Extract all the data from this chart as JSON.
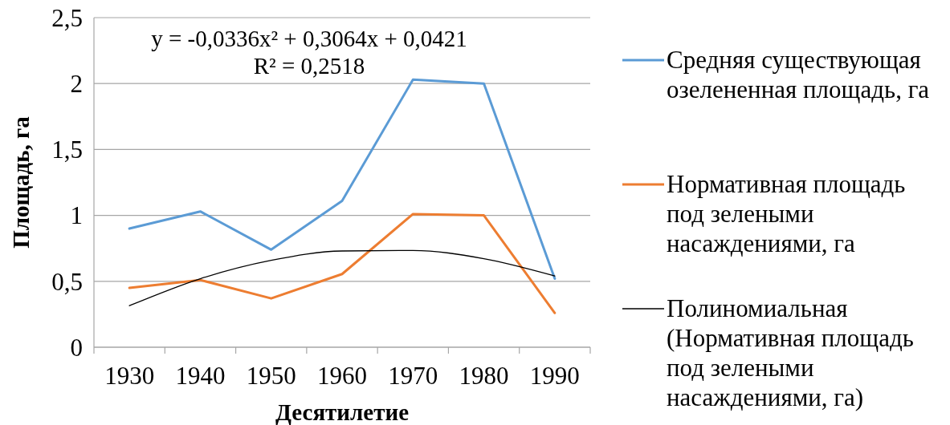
{
  "chart_data": {
    "type": "line",
    "xlabel": "Десятилетие",
    "ylabel": "Площадь, га",
    "categories": [
      "1930",
      "1940",
      "1950",
      "1960",
      "1970",
      "1980",
      "1990"
    ],
    "series": [
      {
        "name": "Средняя существующая озелененная площадь, га",
        "color": "#5b9bd5",
        "values": [
          0.9,
          1.03,
          0.74,
          1.11,
          2.03,
          2.0,
          0.52
        ]
      },
      {
        "name": "Нормативная площадь под зелеными насаждениями, га",
        "color": "#ed7d31",
        "values": [
          0.45,
          0.51,
          0.37,
          0.555,
          1.01,
          1.0,
          0.26
        ]
      },
      {
        "name": "Полиномиальная (Нормативная площадь под зелеными насаждениями, га)",
        "color": "#000000",
        "values": [
          0.315,
          0.52,
          0.659,
          0.73,
          0.734,
          0.671,
          0.54
        ]
      }
    ],
    "ylim": [
      0,
      2.5
    ],
    "yticks": [
      0,
      {
        "value": 0.5,
        "label": "0,5"
      },
      1,
      {
        "value": 1.5,
        "label": "1,5"
      },
      2,
      {
        "value": 2.5,
        "label": "2,5"
      }
    ],
    "grid": "y",
    "legend": "right",
    "marker": "none",
    "line_style": "solid",
    "annotations": [
      "y = -0,0336x² + 0,3064x + 0,0421",
      "R² = 0,2518"
    ]
  }
}
